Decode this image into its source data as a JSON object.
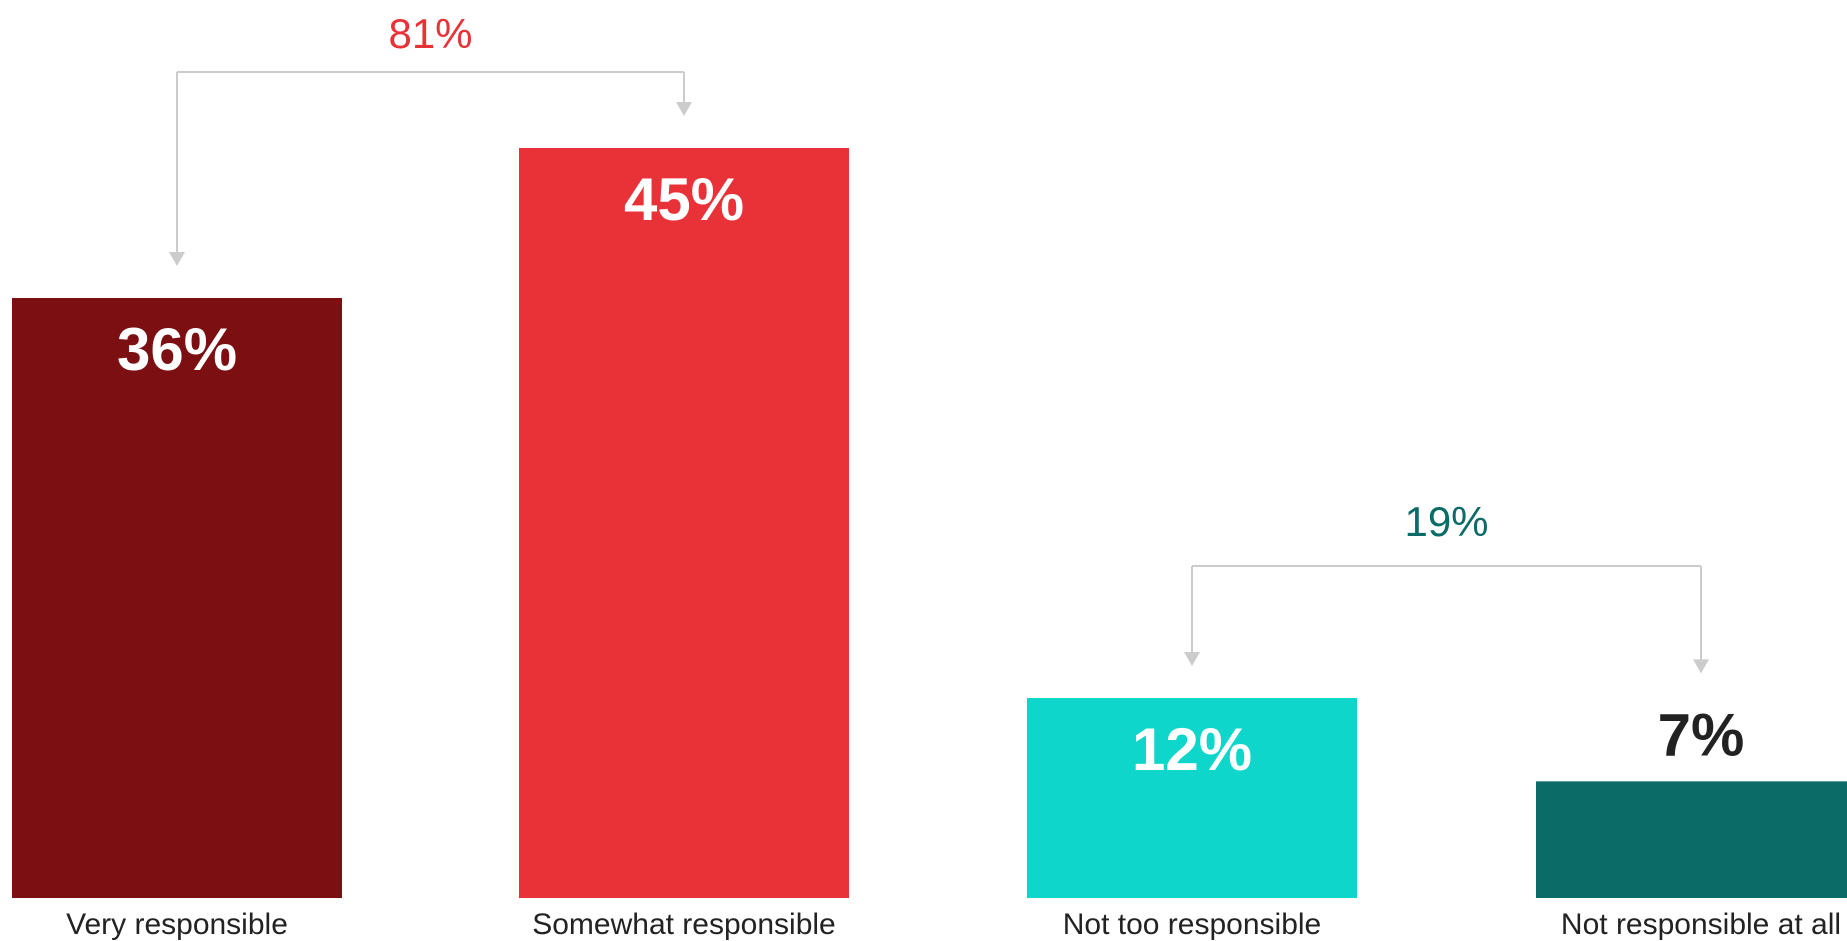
{
  "chart_data": {
    "type": "bar",
    "categories": [
      "Very responsible",
      "Somewhat responsible",
      "Not too responsible",
      "Not responsible at all"
    ],
    "values": [
      36,
      45,
      12,
      7
    ],
    "value_labels": [
      "36%",
      "45%",
      "12%",
      "7%"
    ],
    "bar_colors": [
      "#7b0f11",
      "#e83238",
      "#0fd6cb",
      "#0b6b66"
    ],
    "value_label_colors": [
      "#ffffff",
      "#ffffff",
      "#ffffff",
      "#222222"
    ],
    "ylim": [
      0,
      45
    ],
    "grid": false,
    "groups": [
      {
        "label": "81%",
        "members": [
          "Very responsible",
          "Somewhat responsible"
        ],
        "color": "#e83238"
      },
      {
        "label": "19%",
        "members": [
          "Not too responsible",
          "Not responsible at all"
        ],
        "color": "#0b6b66"
      }
    ],
    "bracket_color": "#cccccc"
  }
}
